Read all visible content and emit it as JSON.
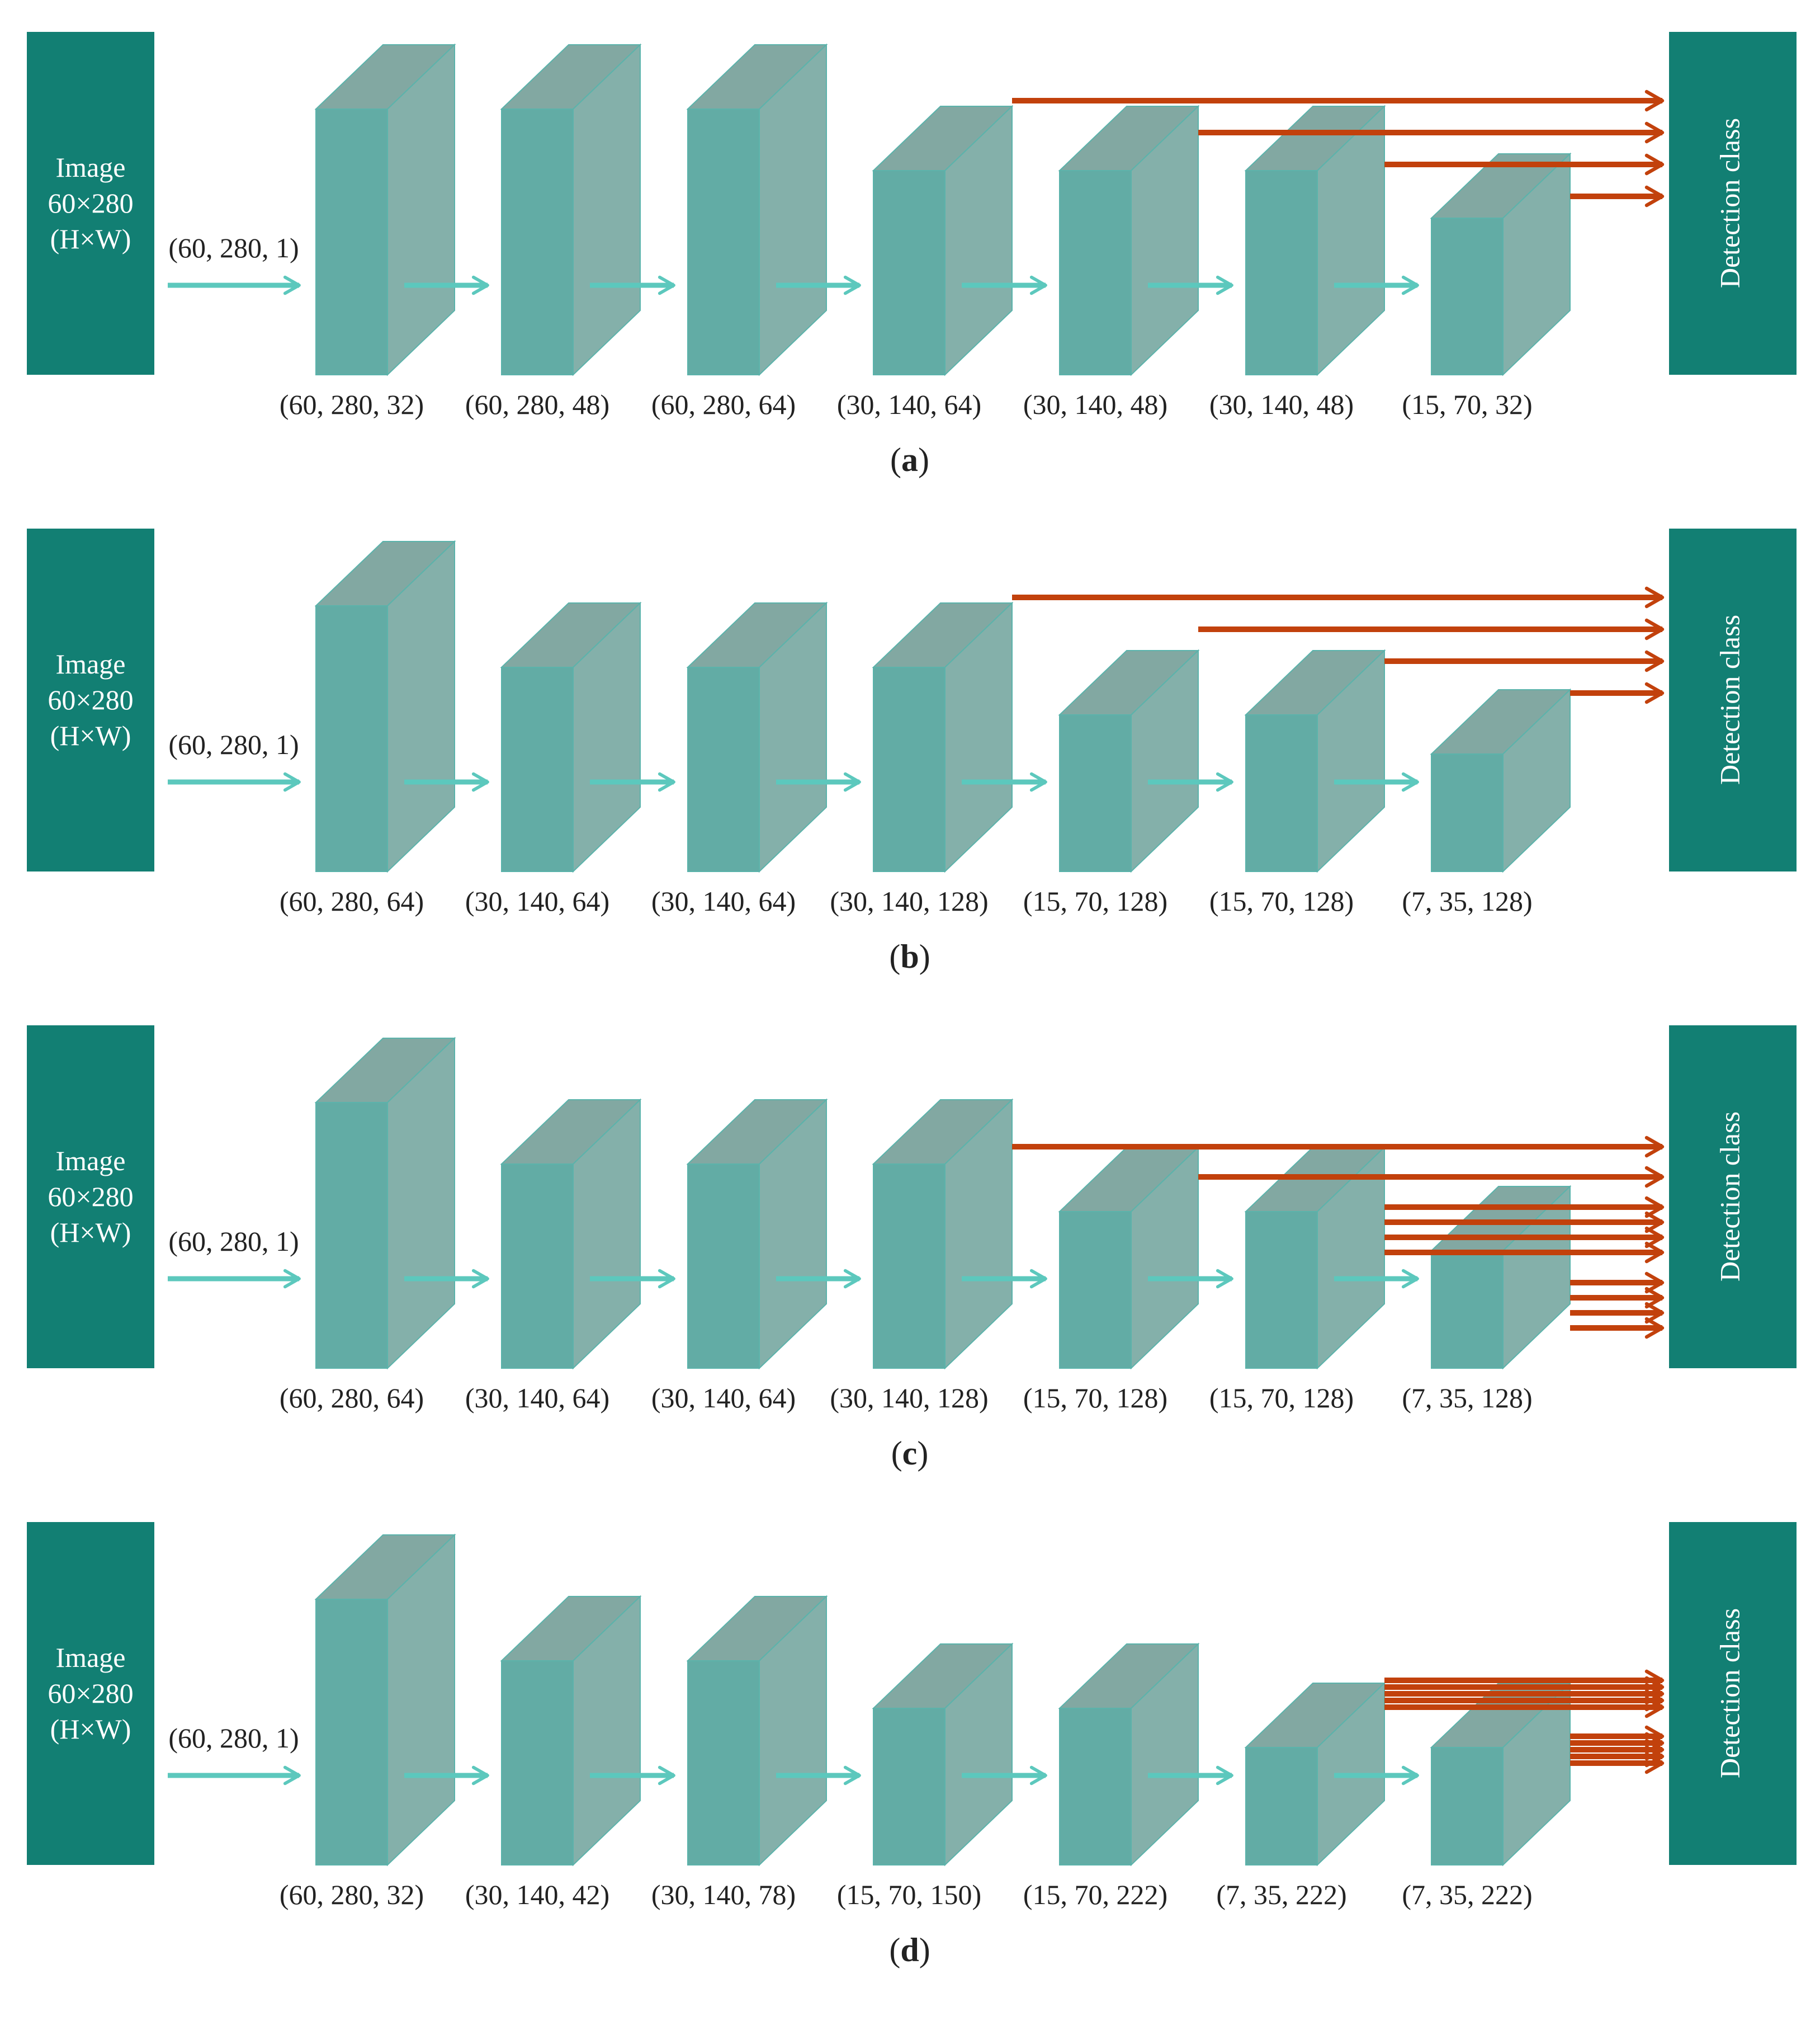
{
  "colors": {
    "box": "#127f73",
    "block_front": "#62aca5",
    "block_side": "#84b0aa",
    "block_top": "#82a8a2",
    "block_edge": "#5bb3ab",
    "flow_arrow": "#5cc8bd",
    "skip_arrow": "#c2410c",
    "text": "#222222",
    "box_text": "#ffffff"
  },
  "panels": [
    {
      "label_open": "(",
      "label": "a",
      "label_close": ")",
      "input": {
        "line1": "Image",
        "line2": "60×280",
        "line3": "(H×W)"
      },
      "input_shape": "(60, 280, 1)",
      "output_label": "Detection class",
      "blocks": [
        {
          "size": "large",
          "shape": "(60, 280, 32)"
        },
        {
          "size": "large",
          "shape": "(60, 280, 48)"
        },
        {
          "size": "large",
          "shape": "(60, 280, 64)"
        },
        {
          "size": "medium",
          "shape": "(30, 140, 64)"
        },
        {
          "size": "medium",
          "shape": "(30, 140, 48)"
        },
        {
          "size": "medium",
          "shape": "(30, 140, 48)"
        },
        {
          "size": "small",
          "shape": "(15, 70, 32)"
        }
      ],
      "skip_sources": [
        3,
        4,
        5,
        6
      ]
    },
    {
      "label_open": "(",
      "label": "b",
      "label_close": ")",
      "input": {
        "line1": "Image",
        "line2": "60×280",
        "line3": "(H×W)"
      },
      "input_shape": "(60, 280, 1)",
      "output_label": "Detection class",
      "blocks": [
        {
          "size": "large",
          "shape": "(60, 280, 64)"
        },
        {
          "size": "medium",
          "shape": "(30, 140, 64)"
        },
        {
          "size": "medium",
          "shape": "(30, 140, 64)"
        },
        {
          "size": "medium",
          "shape": "(30, 140, 128)"
        },
        {
          "size": "small",
          "shape": "(15, 70, 128)"
        },
        {
          "size": "small",
          "shape": "(15, 70, 128)"
        },
        {
          "size": "tiny",
          "shape": "(7, 35, 128)"
        }
      ],
      "skip_sources": [
        3,
        4,
        5,
        6
      ]
    },
    {
      "label_open": "(",
      "label": "c",
      "label_close": ")",
      "input": {
        "line1": "Image",
        "line2": "60×280",
        "line3": "(H×W)"
      },
      "input_shape": "(60, 280, 1)",
      "output_label": "Detection class",
      "blocks": [
        {
          "size": "large",
          "shape": "(60, 280, 64)"
        },
        {
          "size": "medium",
          "shape": "(30, 140, 64)"
        },
        {
          "size": "medium",
          "shape": "(30, 140, 64)"
        },
        {
          "size": "medium",
          "shape": "(30, 140, 128)"
        },
        {
          "size": "small",
          "shape": "(15, 70, 128)"
        },
        {
          "size": "small",
          "shape": "(15, 70, 128)"
        },
        {
          "size": "tiny",
          "shape": "(7, 35, 128)"
        }
      ],
      "skip_sources": [
        3,
        4,
        5,
        5,
        5,
        5,
        6,
        6,
        6,
        6
      ]
    },
    {
      "label_open": "(",
      "label": "d",
      "label_close": ")",
      "input": {
        "line1": "Image",
        "line2": "60×280",
        "line3": "(H×W)"
      },
      "input_shape": "(60, 280, 1)",
      "output_label": "Detection class",
      "blocks": [
        {
          "size": "large",
          "shape": "(60, 280, 32)"
        },
        {
          "size": "medium",
          "shape": "(30, 140, 42)"
        },
        {
          "size": "medium",
          "shape": "(30, 140, 78)"
        },
        {
          "size": "small",
          "shape": "(15, 70, 150)"
        },
        {
          "size": "small",
          "shape": "(15, 70, 222)"
        },
        {
          "size": "tiny",
          "shape": "(7, 35, 222)"
        },
        {
          "size": "tiny",
          "shape": "(7, 35, 222)"
        }
      ],
      "skip_sources": [
        5,
        5,
        5,
        5,
        5,
        6,
        6,
        6,
        6,
        6
      ]
    }
  ]
}
